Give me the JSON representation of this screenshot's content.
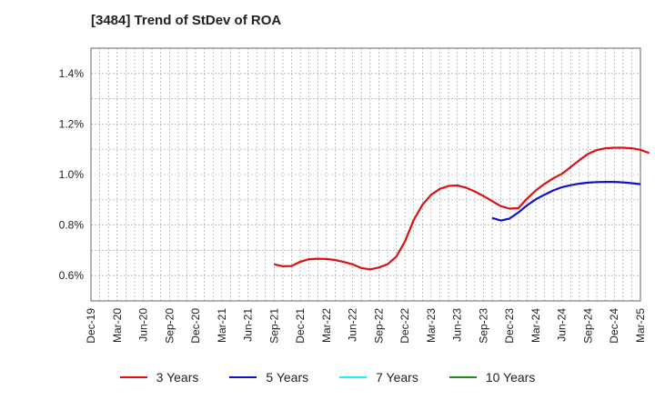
{
  "chart_data": {
    "type": "line",
    "title": "[3484]  Trend of StDev of ROA",
    "xlabel": "",
    "ylabel": "",
    "x_ticks": [
      "Dec-19",
      "Mar-20",
      "Jun-20",
      "Sep-20",
      "Dec-20",
      "Mar-21",
      "Jun-21",
      "Sep-21",
      "Dec-21",
      "Mar-22",
      "Jun-22",
      "Sep-22",
      "Dec-22",
      "Mar-23",
      "Jun-23",
      "Sep-23",
      "Dec-23",
      "Mar-24",
      "Jun-24",
      "Sep-24",
      "Dec-24",
      "Mar-25"
    ],
    "y_ticks": [
      "0.6%",
      "0.8%",
      "1.0%",
      "1.2%",
      "1.4%"
    ],
    "ylim": [
      0.5,
      1.5
    ],
    "y_unit": "%",
    "grid": true,
    "legend_position": "bottom",
    "series": [
      {
        "name": "3 Years",
        "color": "#dd1111",
        "points": [
          [
            "Sep-21",
            0.645
          ],
          [
            "Oct-21",
            0.637
          ],
          [
            "Nov-21",
            0.638
          ],
          [
            "Dec-21",
            0.655
          ],
          [
            "Jan-22",
            0.665
          ],
          [
            "Feb-22",
            0.667
          ],
          [
            "Mar-22",
            0.666
          ],
          [
            "Apr-22",
            0.662
          ],
          [
            "May-22",
            0.654
          ],
          [
            "Jun-22",
            0.645
          ],
          [
            "Jul-22",
            0.63
          ],
          [
            "Aug-22",
            0.625
          ],
          [
            "Sep-22",
            0.632
          ],
          [
            "Oct-22",
            0.645
          ],
          [
            "Nov-22",
            0.675
          ],
          [
            "Dec-22",
            0.735
          ],
          [
            "Jan-23",
            0.82
          ],
          [
            "Feb-23",
            0.88
          ],
          [
            "Mar-23",
            0.92
          ],
          [
            "Apr-23",
            0.943
          ],
          [
            "May-23",
            0.955
          ],
          [
            "Jun-23",
            0.957
          ],
          [
            "Jul-23",
            0.948
          ],
          [
            "Aug-23",
            0.933
          ],
          [
            "Sep-23",
            0.915
          ],
          [
            "Oct-23",
            0.895
          ],
          [
            "Nov-23",
            0.875
          ],
          [
            "Dec-23",
            0.865
          ],
          [
            "Jan-24",
            0.867
          ],
          [
            "Feb-24",
            0.905
          ],
          [
            "Mar-24",
            0.937
          ],
          [
            "Apr-24",
            0.963
          ],
          [
            "May-24",
            0.985
          ],
          [
            "Jun-24",
            1.003
          ],
          [
            "Jul-24",
            1.03
          ],
          [
            "Aug-24",
            1.057
          ],
          [
            "Sep-24",
            1.082
          ],
          [
            "Oct-24",
            1.097
          ],
          [
            "Nov-24",
            1.104
          ],
          [
            "Dec-24",
            1.106
          ],
          [
            "Jan-25",
            1.106
          ],
          [
            "Feb-25",
            1.104
          ],
          [
            "Mar-25",
            1.098
          ],
          [
            "Apr-25",
            1.085
          ]
        ]
      },
      {
        "name": "5 Years",
        "color": "#1111cc",
        "points": [
          [
            "Oct-23",
            0.828
          ],
          [
            "Nov-23",
            0.818
          ],
          [
            "Dec-23",
            0.826
          ],
          [
            "Jan-24",
            0.85
          ],
          [
            "Feb-24",
            0.878
          ],
          [
            "Mar-24",
            0.902
          ],
          [
            "Apr-24",
            0.92
          ],
          [
            "May-24",
            0.937
          ],
          [
            "Jun-24",
            0.95
          ],
          [
            "Jul-24",
            0.958
          ],
          [
            "Aug-24",
            0.964
          ],
          [
            "Sep-24",
            0.968
          ],
          [
            "Oct-24",
            0.97
          ],
          [
            "Nov-24",
            0.971
          ],
          [
            "Dec-24",
            0.971
          ],
          [
            "Jan-25",
            0.969
          ],
          [
            "Feb-25",
            0.966
          ],
          [
            "Mar-25",
            0.962
          ]
        ]
      },
      {
        "name": "7 Years",
        "color": "#22eeee",
        "points": []
      },
      {
        "name": "10 Years",
        "color": "#228822",
        "points": []
      }
    ]
  }
}
